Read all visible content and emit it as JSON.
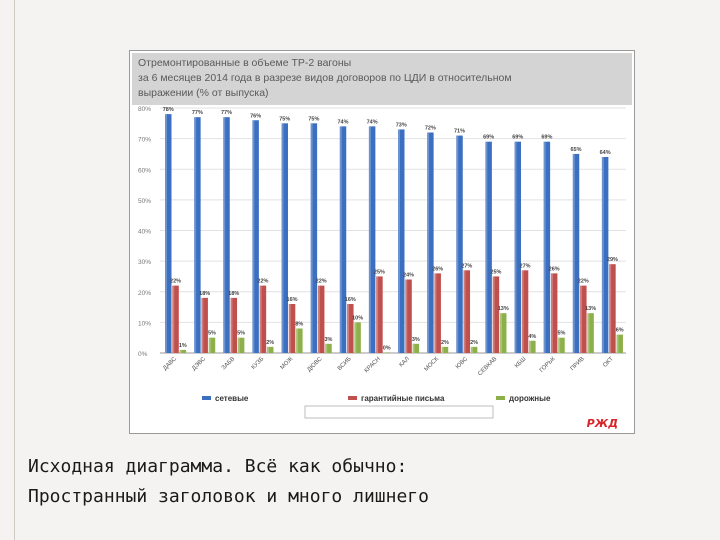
{
  "chart_data": {
    "type": "bar",
    "title_lines": [
      "Отремонтированные в объеме ТР-2 вагоны",
      "за 6 месяцев 2014 года в разрезе видов договоров по ЦДИ в относительном",
      "выражении (% от выпуска)"
    ],
    "categories": [
      "ДАВС",
      "ДЭВС",
      "ЗАБВ",
      "КУЗБ",
      "МОЖ",
      "ДЮВС",
      "ВСИБ",
      "КРАСН",
      "КАЛ",
      "МОСК",
      "ЮВС",
      "СЕВКАВ",
      "КБШ",
      "ГОРЬК",
      "ПРИВ",
      "ОКТ"
    ],
    "series": [
      {
        "name": "сетевые",
        "values": [
          78,
          77,
          77,
          76,
          75,
          75,
          74,
          74,
          73,
          72,
          71,
          69,
          69,
          69,
          65,
          64
        ],
        "labels": [
          "78%",
          "77%",
          "77%",
          "76%",
          "75%",
          "75%",
          "74%",
          "74%",
          "73%",
          "72%",
          "71%",
          "69%",
          "69%",
          "69%",
          "65%",
          "64%"
        ]
      },
      {
        "name": "гарантийные письма",
        "values": [
          22,
          18,
          18,
          22,
          16,
          22,
          16,
          25,
          24,
          26,
          27,
          25,
          27,
          26,
          22,
          29
        ],
        "labels": [
          "22%",
          "18%",
          "18%",
          "22%",
          "16%",
          "22%",
          "16%",
          "25%",
          "24%",
          "26%",
          "27%",
          "25%",
          "27%",
          "26%",
          "22%",
          "29%"
        ]
      },
      {
        "name": "дорожные",
        "values": [
          1,
          5,
          5,
          2,
          8,
          3,
          10,
          0,
          3,
          2,
          2,
          13,
          4,
          5,
          13,
          6
        ],
        "labels": [
          "1%",
          "5%",
          "5%",
          "2%",
          "8%",
          "3%",
          "10%",
          "0%",
          "3%",
          "2%",
          "2%",
          "13%",
          "4%",
          "5%",
          "13%",
          "6%"
        ]
      }
    ],
    "y_ticks": [
      "0%",
      "10%",
      "20%",
      "30%",
      "40%",
      "50%",
      "60%",
      "70%",
      "80%"
    ],
    "ylim": [
      0,
      80
    ],
    "grid": true,
    "legend_position": "bottom",
    "colors": {
      "sets": "#3b6fc0",
      "guar": "#c0504d",
      "road": "#8db04a"
    }
  },
  "brand_logo_text": "РЖД",
  "caption": {
    "line1": "Исходная диаграмма. Всё как обычно:",
    "line2": "Пространный заголовок и много лишнего"
  }
}
